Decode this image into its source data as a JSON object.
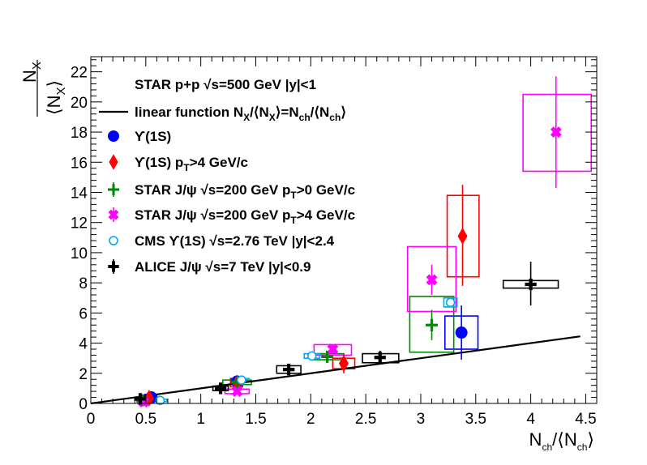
{
  "chart_data": {
    "type": "scatter",
    "xlabel": "N_ch/⟨N_ch⟩",
    "ylabel": "N_X/⟨N_X⟩",
    "xlim": [
      0,
      4.6
    ],
    "ylim": [
      0,
      23
    ],
    "x_ticks": [
      0,
      0.5,
      1,
      1.5,
      2,
      2.5,
      3,
      3.5,
      4,
      4.5
    ],
    "y_ticks": [
      0,
      2,
      4,
      6,
      8,
      10,
      12,
      14,
      16,
      18,
      20,
      22
    ],
    "x_tick_labels": [
      "0",
      "0.5",
      "1",
      "1.5",
      "2",
      "2.5",
      "3",
      "3.5",
      "4",
      "4.5"
    ],
    "y_tick_labels": [
      "0",
      "2",
      "4",
      "6",
      "8",
      "10",
      "12",
      "14",
      "16",
      "18",
      "20",
      "22"
    ],
    "legend_position": "top-left",
    "grid": false,
    "header_text": "STAR p+p    √s=500 GeV |y|<1",
    "line": {
      "name": "linear function N_X/⟨N_X⟩=N_ch/⟨N_ch⟩",
      "color": "#000000",
      "x": [
        0,
        4.6
      ],
      "y": [
        0,
        4.6
      ]
    },
    "series": [
      {
        "name": "ϒ(1S)",
        "marker": "circle",
        "color": "#0000ff",
        "points": [
          {
            "x": 0.55,
            "y": 0.4,
            "ylo": 0.2,
            "yhi": 0.6,
            "bx": [
              0.49,
              0.6
            ],
            "by": [
              0.2,
              0.6
            ]
          },
          {
            "x": 1.33,
            "y": 1.45,
            "ylo": 1.2,
            "yhi": 1.7,
            "bx": [
              1.27,
              1.38
            ],
            "by": [
              1.25,
              1.65
            ]
          },
          {
            "x": 3.37,
            "y": 4.7,
            "ylo": 2.9,
            "yhi": 6.5,
            "bx": [
              3.22,
              3.52
            ],
            "by": [
              3.6,
              5.8
            ]
          }
        ]
      },
      {
        "name": "ϒ(1S) p_T>4 GeV/c",
        "marker": "diamond",
        "color": "#ff0000",
        "points": [
          {
            "x": 0.53,
            "y": 0.35,
            "ylo": 0.15,
            "yhi": 0.55,
            "bx": [
              0.48,
              0.58
            ],
            "by": [
              0.15,
              0.55
            ]
          },
          {
            "x": 1.33,
            "y": 1.35,
            "ylo": 1.05,
            "yhi": 1.65,
            "bx": [
              1.27,
              1.38
            ],
            "by": [
              1.1,
              1.6
            ]
          },
          {
            "x": 2.3,
            "y": 2.65,
            "ylo": 2.0,
            "yhi": 3.3,
            "bx": [
              2.2,
              2.4
            ],
            "by": [
              2.3,
              3.0
            ]
          },
          {
            "x": 3.38,
            "y": 11.1,
            "ylo": 7.8,
            "yhi": 14.5,
            "bx": [
              3.24,
              3.53
            ],
            "by": [
              8.4,
              13.8
            ]
          }
        ]
      },
      {
        "name": "STAR J/ψ    √s=200 GeV p_T>0 GeV/c",
        "marker": "cross",
        "color": "#008800",
        "points": [
          {
            "x": 0.47,
            "y": 0.2,
            "ylo": 0.1,
            "yhi": 0.3,
            "bx": [
              0.42,
              0.53
            ],
            "by": [
              0.1,
              0.3
            ]
          },
          {
            "x": 1.33,
            "y": 1.4,
            "ylo": 1.2,
            "yhi": 1.6,
            "bx": [
              1.2,
              1.46
            ],
            "by": [
              1.25,
              1.55
            ]
          },
          {
            "x": 2.15,
            "y": 3.1,
            "ylo": 2.9,
            "yhi": 3.3,
            "bx": [
              2.0,
              2.3
            ],
            "by": [
              2.9,
              3.3
            ]
          },
          {
            "x": 3.1,
            "y": 5.2,
            "ylo": 4.2,
            "yhi": 6.2,
            "bx": [
              2.9,
              3.3
            ],
            "by": [
              3.4,
              7.1
            ]
          }
        ]
      },
      {
        "name": "STAR J/ψ    √s=200 GeV p_T>4 GeV/c",
        "marker": "x",
        "color": "#ff00ff",
        "points": [
          {
            "x": 0.48,
            "y": 0.1,
            "ylo": 0.0,
            "yhi": 0.2,
            "bx": [
              0.43,
              0.54
            ],
            "by": [
              0.0,
              0.2
            ]
          },
          {
            "x": 1.33,
            "y": 0.8,
            "ylo": 0.6,
            "yhi": 1.0,
            "bx": [
              1.22,
              1.44
            ],
            "by": [
              0.65,
              0.95
            ]
          },
          {
            "x": 2.2,
            "y": 3.6,
            "ylo": 3.3,
            "yhi": 3.9,
            "bx": [
              2.03,
              2.37
            ],
            "by": [
              3.2,
              3.9
            ]
          },
          {
            "x": 3.1,
            "y": 8.2,
            "ylo": 7.2,
            "yhi": 9.2,
            "bx": [
              2.88,
              3.32
            ],
            "by": [
              6.1,
              10.4
            ]
          },
          {
            "x": 4.23,
            "y": 18.0,
            "ylo": 14.3,
            "yhi": 21.7,
            "bx": [
              3.93,
              4.55
            ],
            "by": [
              15.4,
              20.5
            ]
          }
        ]
      },
      {
        "name": "CMS    ϒ(1S)    √s=2.76 TeV |y|<2.4",
        "marker": "open-circle",
        "color": "#00aaee",
        "points": [
          {
            "x": 0.63,
            "y": 0.2,
            "ylo": 0.1,
            "yhi": 0.3,
            "bx": [
              0.57,
              0.69
            ],
            "by": [
              0.12,
              0.28
            ]
          },
          {
            "x": 1.37,
            "y": 1.55,
            "ylo": 1.45,
            "yhi": 1.65,
            "bx": [
              1.3,
              1.44
            ],
            "by": [
              1.45,
              1.65
            ]
          },
          {
            "x": 2.01,
            "y": 3.15,
            "ylo": 3.05,
            "yhi": 3.25,
            "bx": [
              1.94,
              2.08
            ],
            "by": [
              3.0,
              3.3
            ]
          },
          {
            "x": 3.27,
            "y": 6.7,
            "ylo": 6.5,
            "yhi": 6.9,
            "bx": [
              3.21,
              3.33
            ],
            "by": [
              6.4,
              7.0
            ]
          }
        ]
      },
      {
        "name": "ALICE J/ψ    √s=7 TeV |y|<0.9",
        "marker": "plus",
        "color": "#000000",
        "points": [
          {
            "x": 0.45,
            "y": 0.3,
            "ylo": 0.2,
            "yhi": 0.4,
            "bx": [
              0.4,
              0.5
            ],
            "by": [
              0.22,
              0.38
            ]
          },
          {
            "x": 1.18,
            "y": 1.0,
            "ylo": 0.85,
            "yhi": 1.15,
            "bx": [
              1.11,
              1.25
            ],
            "by": [
              0.85,
              1.15
            ]
          },
          {
            "x": 1.8,
            "y": 2.25,
            "ylo": 2.0,
            "yhi": 2.5,
            "bx": [
              1.69,
              1.91
            ],
            "by": [
              2.0,
              2.5
            ]
          },
          {
            "x": 2.63,
            "y": 3.05,
            "ylo": 2.7,
            "yhi": 3.5,
            "bx": [
              2.47,
              2.8
            ],
            "by": [
              2.7,
              3.3
            ]
          },
          {
            "x": 4.0,
            "y": 7.9,
            "ylo": 6.5,
            "yhi": 9.4,
            "bx": [
              3.75,
              4.25
            ],
            "by": [
              7.65,
              8.15
            ]
          }
        ]
      }
    ]
  }
}
